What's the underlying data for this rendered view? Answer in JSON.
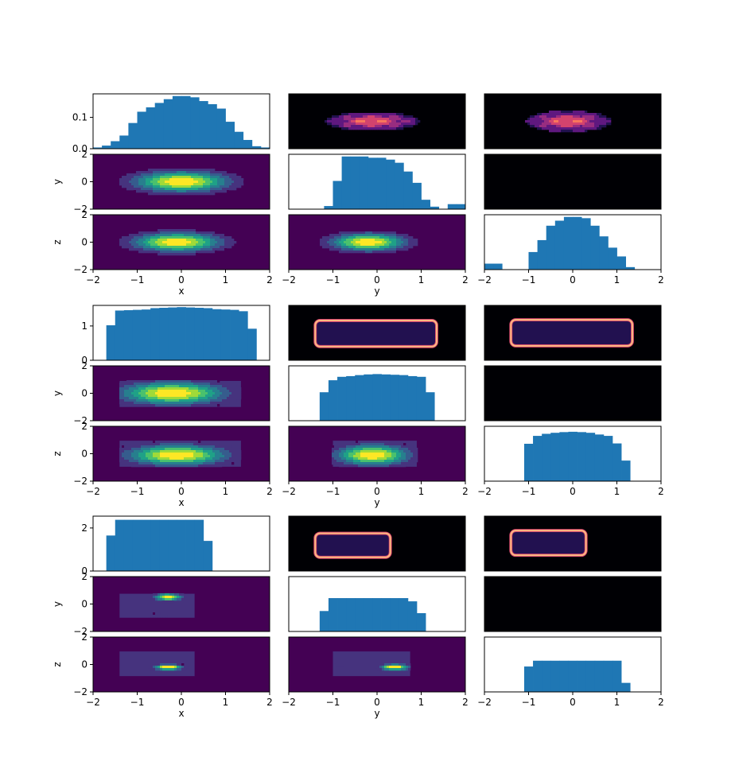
{
  "colors": {
    "bar": "#1f77b4",
    "viridis": [
      "#440154",
      "#46337e",
      "#365c8d",
      "#277f8e",
      "#1fa187",
      "#4ac16d",
      "#a0da39",
      "#fde725"
    ],
    "magma": [
      "#000004",
      "#221150",
      "#5f187f",
      "#982d80",
      "#d3436e",
      "#f8765c",
      "#febb81",
      "#fcfdbf"
    ]
  },
  "chart_data": [
    {
      "type": "corner-matrix",
      "axis_labels": [
        "x",
        "y",
        "z"
      ],
      "limits": [
        -2,
        2
      ],
      "x_ticks": [
        "−2",
        "−1",
        "0",
        "1",
        "2"
      ],
      "row_ticks": [
        "−2",
        "0",
        "2"
      ],
      "diag_ticks": [
        "0.0",
        "0.1"
      ],
      "diag_tick_values": [
        0,
        0.1
      ],
      "diag_ymax": 0.175,
      "histograms": [
        {
          "variable": "x",
          "edges": [
            -2,
            -1.8,
            -1.6,
            -1.4,
            -1.2,
            -1,
            -0.8,
            -0.6,
            -0.4,
            -0.2,
            0,
            0.2,
            0.4,
            0.6,
            0.8,
            1,
            1.2,
            1.4,
            1.6,
            1.8,
            2
          ],
          "values": [
            0.004,
            0.01,
            0.024,
            0.042,
            0.082,
            0.118,
            0.132,
            0.146,
            0.158,
            0.168,
            0.168,
            0.164,
            0.152,
            0.142,
            0.128,
            0.086,
            0.054,
            0.028,
            0.008,
            0.004
          ]
        },
        {
          "variable": "y",
          "edges": [
            -2,
            -1.8,
            -1.6,
            -1.4,
            -1.2,
            -1,
            -0.8,
            -0.6,
            -0.4,
            -0.2,
            0,
            0.2,
            0.4,
            0.6,
            0.8,
            1,
            1.2,
            1.4,
            1.6,
            1.8,
            2
          ],
          "values": [
            0,
            0,
            0,
            0,
            0.01,
            0.09,
            0.168,
            0.168,
            0.168,
            0.164,
            0.164,
            0.158,
            0.148,
            0.12,
            0.084,
            0.03,
            0.008,
            0,
            0.016,
            0.016
          ]
        },
        {
          "variable": "z",
          "edges": [
            -2,
            -1.8,
            -1.6,
            -1.4,
            -1.2,
            -1,
            -0.8,
            -0.6,
            -0.4,
            -0.2,
            0,
            0.2,
            0.4,
            0.6,
            0.8,
            1,
            1.2,
            1.4,
            1.6,
            1.8,
            2
          ],
          "values": [
            0.019,
            0.019,
            0,
            0,
            0,
            0.056,
            0.094,
            0.14,
            0.156,
            0.168,
            0.168,
            0.164,
            0.14,
            0.106,
            0.07,
            0.042,
            0.008,
            0,
            0,
            0
          ]
        }
      ],
      "density_blobs": {
        "yx": [
          {
            "cx": 0,
            "cy": 0,
            "sx": 0.7,
            "sy": 0.5,
            "amp": 1
          }
        ],
        "zx": [
          {
            "cx": -0.1,
            "cy": 0,
            "sx": 0.65,
            "sy": 0.45,
            "amp": 1
          }
        ],
        "zy": [
          {
            "cx": -0.2,
            "cy": 0,
            "sx": 0.55,
            "sy": 0.42,
            "amp": 1
          }
        ]
      },
      "magma_blobs": {
        "xy": [
          {
            "cx": -0.1,
            "cy": 0,
            "sx": 0.55,
            "sy": 0.35,
            "amp": 1
          }
        ],
        "xz": [
          {
            "cx": -0.1,
            "cy": 0,
            "sx": 0.5,
            "sy": 0.4,
            "amp": 1
          }
        ]
      },
      "box": null
    },
    {
      "type": "corner-matrix",
      "axis_labels": [
        "x",
        "y",
        "z"
      ],
      "limits": [
        -2,
        2
      ],
      "x_ticks": [
        "−2",
        "−1",
        "0",
        "1",
        "2"
      ],
      "row_ticks": [
        "−2",
        "0",
        "2"
      ],
      "diag_ticks": [
        "0",
        "1"
      ],
      "diag_tick_values": [
        0,
        1
      ],
      "diag_ymax": 1.6,
      "histograms": [
        {
          "variable": "x",
          "edges": [
            -2,
            -1.7,
            -1.5,
            -1.3,
            -1.1,
            -0.9,
            -0.7,
            -0.5,
            -0.3,
            -0.1,
            0.1,
            0.3,
            0.5,
            0.7,
            0.9,
            1.1,
            1.3,
            1.5,
            1.7,
            2
          ],
          "values": [
            0,
            1.02,
            1.45,
            1.46,
            1.47,
            1.48,
            1.52,
            1.53,
            1.54,
            1.55,
            1.54,
            1.53,
            1.52,
            1.49,
            1.48,
            1.47,
            1.43,
            0.92,
            0
          ]
        },
        {
          "variable": "y",
          "edges": [
            -2,
            -1.3,
            -1.1,
            -0.9,
            -0.7,
            -0.5,
            -0.3,
            -0.1,
            0.1,
            0.3,
            0.5,
            0.7,
            0.9,
            1.1,
            1.3,
            2
          ],
          "values": [
            0,
            0.83,
            1.18,
            1.28,
            1.3,
            1.33,
            1.35,
            1.36,
            1.35,
            1.34,
            1.33,
            1.3,
            1.28,
            0.83,
            0
          ]
        },
        {
          "variable": "z",
          "edges": [
            -2,
            -1.1,
            -0.9,
            -0.7,
            -0.5,
            -0.3,
            -0.1,
            0.1,
            0.3,
            0.5,
            0.7,
            0.9,
            1.1,
            1.3,
            2
          ],
          "values": [
            0,
            1.09,
            1.32,
            1.38,
            1.41,
            1.43,
            1.44,
            1.43,
            1.41,
            1.36,
            1.32,
            1.1,
            0.6,
            0
          ]
        }
      ],
      "density_blobs": {
        "yx": [
          {
            "cx": -0.2,
            "cy": 0,
            "sx": 0.8,
            "sy": 0.55,
            "amp": 1
          }
        ],
        "zx": [
          {
            "cx": -0.1,
            "cy": -0.1,
            "sx": 0.75,
            "sy": 0.5,
            "amp": 1
          }
        ],
        "zy": [
          {
            "cx": -0.1,
            "cy": -0.1,
            "sx": 0.55,
            "sy": 0.5,
            "amp": 1
          }
        ]
      },
      "magma_blobs": null,
      "box": {
        "x": [
          -1.4,
          1.35
        ],
        "y": [
          -1.0,
          0.9
        ],
        "z": [
          -0.95,
          0.95
        ]
      }
    },
    {
      "type": "corner-matrix",
      "axis_labels": [
        "x",
        "y",
        "z"
      ],
      "limits": [
        -2,
        2
      ],
      "x_ticks": [
        "−2",
        "−1",
        "0",
        "1",
        "2"
      ],
      "row_ticks": [
        "−2",
        "0",
        "2"
      ],
      "diag_ticks": [
        "0",
        "2"
      ],
      "diag_tick_values": [
        0,
        2
      ],
      "diag_ymax": 2.55,
      "histograms": [
        {
          "variable": "x",
          "edges": [
            -2,
            -1.7,
            -1.5,
            -1.3,
            -1.1,
            -0.9,
            -0.7,
            -0.5,
            -0.3,
            -0.1,
            0.1,
            0.3,
            0.5,
            0.7,
            2
          ],
          "values": [
            0,
            1.65,
            2.38,
            2.38,
            2.38,
            2.38,
            2.38,
            2.38,
            2.38,
            2.38,
            2.38,
            2.38,
            1.4,
            0
          ]
        },
        {
          "variable": "y",
          "edges": [
            -2,
            -1.3,
            -1.1,
            -0.9,
            -0.7,
            -0.5,
            -0.3,
            -0.1,
            0.1,
            0.3,
            0.5,
            0.7,
            0.9,
            1.1,
            2
          ],
          "values": [
            0,
            0.95,
            1.55,
            1.55,
            1.55,
            1.55,
            1.55,
            1.55,
            1.55,
            1.55,
            1.55,
            1.4,
            0.85,
            0
          ]
        },
        {
          "variable": "z",
          "edges": [
            -2,
            -1.1,
            -0.9,
            -0.7,
            -0.5,
            -0.3,
            -0.1,
            0.1,
            0.3,
            0.5,
            0.7,
            0.9,
            1.1,
            1.3,
            2
          ],
          "values": [
            0,
            1.18,
            1.45,
            1.45,
            1.45,
            1.45,
            1.45,
            1.45,
            1.45,
            1.45,
            1.45,
            1.45,
            0.42,
            0
          ]
        }
      ],
      "density_blobs": {
        "yx": [
          {
            "cx": -0.3,
            "cy": 0.5,
            "sx": 0.2,
            "sy": 0.17,
            "amp": 1
          },
          {
            "cx": -0.55,
            "cy": -0.8,
            "sx": 0.2,
            "sy": 0.08,
            "amp": 0.3
          }
        ],
        "zx": [
          {
            "cx": -0.3,
            "cy": -0.2,
            "sx": 0.22,
            "sy": 0.14,
            "amp": 1
          }
        ],
        "zy": [
          {
            "cx": 0.4,
            "cy": -0.2,
            "sx": 0.22,
            "sy": 0.15,
            "amp": 1
          },
          {
            "cx": -0.85,
            "cy": 0.1,
            "sx": 0.1,
            "sy": 0.08,
            "amp": 0.35
          }
        ]
      },
      "magma_blobs": null,
      "box": {
        "x": [
          -1.4,
          0.3
        ],
        "y": [
          -1.0,
          0.75
        ],
        "z": [
          -0.85,
          0.95
        ]
      }
    }
  ]
}
